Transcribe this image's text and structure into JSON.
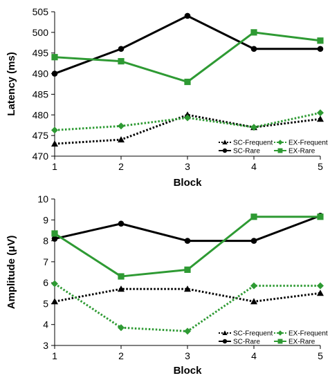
{
  "chart_data": [
    {
      "type": "line",
      "x": [
        1,
        2,
        3,
        4,
        5
      ],
      "xlabel": "Block",
      "ylabel": "Latency (ms)",
      "ylim": [
        470,
        505
      ],
      "ytick_step": 5,
      "grid": false,
      "legend_placement": "bottom-right",
      "series": [
        {
          "name": "SC-Frequent",
          "values": [
            473,
            474,
            480,
            477,
            479
          ],
          "color": "#000000",
          "dash": "dotted",
          "marker": "triangle"
        },
        {
          "name": "EX-Frequent",
          "values": [
            476.3,
            477.3,
            479.3,
            477,
            480.5
          ],
          "color": "#2e9a33",
          "dash": "dotted",
          "marker": "diamond"
        },
        {
          "name": "SC-Rare",
          "values": [
            490,
            496,
            504,
            496,
            496
          ],
          "color": "#000000",
          "dash": "solid",
          "marker": "circle"
        },
        {
          "name": "EX-Rare",
          "values": [
            494,
            493,
            488,
            500,
            498
          ],
          "color": "#2e9a33",
          "dash": "solid",
          "marker": "square"
        }
      ]
    },
    {
      "type": "line",
      "x": [
        1,
        2,
        3,
        4,
        5
      ],
      "xlabel": "Block",
      "ylabel": "Amplitude (μV)",
      "ylim": [
        3,
        10
      ],
      "ytick_step": 1,
      "grid": false,
      "legend_placement": "bottom-right",
      "series": [
        {
          "name": "SC-Frequent",
          "values": [
            5.1,
            5.7,
            5.7,
            5.1,
            5.5
          ],
          "color": "#000000",
          "dash": "dotted",
          "marker": "triangle"
        },
        {
          "name": "EX-Frequent",
          "values": [
            5.95,
            3.85,
            3.68,
            5.85,
            5.85
          ],
          "color": "#2e9a33",
          "dash": "dotted",
          "marker": "diamond"
        },
        {
          "name": "SC-Rare",
          "values": [
            8.1,
            8.82,
            8.0,
            8.0,
            9.2
          ],
          "color": "#000000",
          "dash": "solid",
          "marker": "circle"
        },
        {
          "name": "EX-Rare",
          "values": [
            8.35,
            6.3,
            6.62,
            9.15,
            9.15
          ],
          "color": "#2e9a33",
          "dash": "solid",
          "marker": "square"
        }
      ]
    }
  ]
}
